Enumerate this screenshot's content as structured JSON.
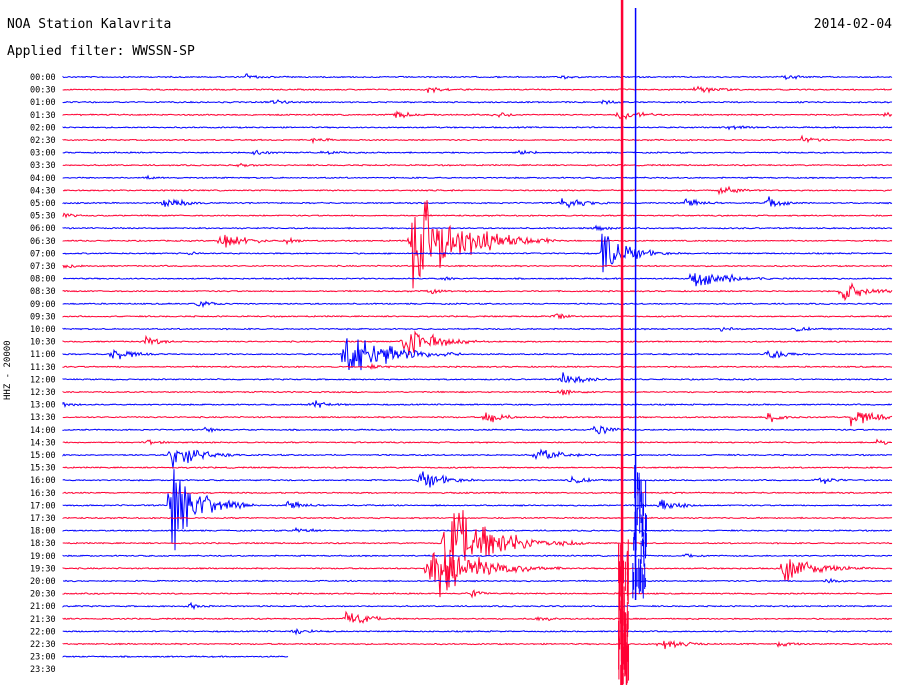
{
  "header": {
    "title": "NOA Station Kalavrita",
    "filter": "Applied filter: WWSSN-SP",
    "date": "2014-02-04"
  },
  "chart_data": {
    "type": "line",
    "title": "NOA Station Kalavrita",
    "subtitle": "Applied filter: WWSSN-SP",
    "date": "2014-02-04",
    "ylabel": "HHZ - 20000",
    "colors": {
      "odd": "#0000ff",
      "even": "#ff0033"
    },
    "rows": [
      "00:00",
      "00:30",
      "01:00",
      "01:30",
      "02:00",
      "02:30",
      "03:00",
      "03:30",
      "04:00",
      "04:30",
      "05:00",
      "05:30",
      "06:00",
      "06:30",
      "07:00",
      "07:30",
      "08:00",
      "08:30",
      "09:00",
      "09:30",
      "10:00",
      "10:30",
      "11:00",
      "11:30",
      "12:00",
      "12:30",
      "13:00",
      "13:30",
      "14:00",
      "14:30",
      "15:00",
      "15:30",
      "16:00",
      "16:30",
      "17:00",
      "17:30",
      "18:00",
      "18:30",
      "19:00",
      "19:30",
      "20:00",
      "20:30",
      "21:00",
      "21:30",
      "22:00",
      "22:30",
      "23:00",
      "23:30"
    ],
    "events": [
      {
        "row": 0,
        "t": 0.22,
        "amp": 4,
        "dur": 0.03
      },
      {
        "row": 0,
        "t": 0.6,
        "amp": 3,
        "dur": 0.03
      },
      {
        "row": 0,
        "t": 0.87,
        "amp": 4,
        "dur": 0.03
      },
      {
        "row": 1,
        "t": 0.44,
        "amp": 4,
        "dur": 0.03
      },
      {
        "row": 1,
        "t": 0.76,
        "amp": 6,
        "dur": 0.04
      },
      {
        "row": 2,
        "t": 0.25,
        "amp": 4,
        "dur": 0.03
      },
      {
        "row": 2,
        "t": 0.65,
        "amp": 3,
        "dur": 0.03
      },
      {
        "row": 3,
        "t": 0.4,
        "amp": 5,
        "dur": 0.03
      },
      {
        "row": 3,
        "t": 0.52,
        "amp": 4,
        "dur": 0.03
      },
      {
        "row": 3,
        "t": 0.67,
        "amp": 7,
        "dur": 0.04
      },
      {
        "row": 3,
        "t": 0.99,
        "amp": 4,
        "dur": 0.02
      },
      {
        "row": 4,
        "t": 0.8,
        "amp": 4,
        "dur": 0.03
      },
      {
        "row": 5,
        "t": 0.3,
        "amp": 4,
        "dur": 0.03
      },
      {
        "row": 5,
        "t": 0.89,
        "amp": 5,
        "dur": 0.03
      },
      {
        "row": 6,
        "t": 0.23,
        "amp": 4,
        "dur": 0.03
      },
      {
        "row": 6,
        "t": 0.31,
        "amp": 4,
        "dur": 0.03
      },
      {
        "row": 6,
        "t": 0.55,
        "amp": 4,
        "dur": 0.03
      },
      {
        "row": 7,
        "t": 0.21,
        "amp": 3,
        "dur": 0.03
      },
      {
        "row": 8,
        "t": 0.1,
        "amp": 3,
        "dur": 0.03
      },
      {
        "row": 9,
        "t": 0.79,
        "amp": 6,
        "dur": 0.04
      },
      {
        "row": 10,
        "t": 0.12,
        "amp": 7,
        "dur": 0.04
      },
      {
        "row": 10,
        "t": 0.6,
        "amp": 8,
        "dur": 0.04
      },
      {
        "row": 10,
        "t": 0.75,
        "amp": 6,
        "dur": 0.03
      },
      {
        "row": 10,
        "t": 0.85,
        "amp": 8,
        "dur": 0.03
      },
      {
        "row": 11,
        "t": 0.0,
        "amp": 4,
        "dur": 0.02
      },
      {
        "row": 12,
        "t": 0.64,
        "amp": 4,
        "dur": 0.03
      },
      {
        "row": 13,
        "t": 0.19,
        "amp": 12,
        "dur": 0.04
      },
      {
        "row": 13,
        "t": 0.42,
        "amp": 70,
        "dur": 0.07
      },
      {
        "row": 13,
        "t": 0.27,
        "amp": 4,
        "dur": 0.02
      },
      {
        "row": 14,
        "t": 0.65,
        "amp": 28,
        "dur": 0.04
      },
      {
        "row": 14,
        "t": 0.15,
        "amp": 3,
        "dur": 0.02
      },
      {
        "row": 15,
        "t": 0.0,
        "amp": 5,
        "dur": 0.02
      },
      {
        "row": 16,
        "t": 0.76,
        "amp": 15,
        "dur": 0.05
      },
      {
        "row": 16,
        "t": 0.46,
        "amp": 3,
        "dur": 0.02
      },
      {
        "row": 17,
        "t": 0.44,
        "amp": 4,
        "dur": 0.03
      },
      {
        "row": 17,
        "t": 0.94,
        "amp": 14,
        "dur": 0.04
      },
      {
        "row": 18,
        "t": 0.16,
        "amp": 5,
        "dur": 0.03
      },
      {
        "row": 19,
        "t": 0.59,
        "amp": 5,
        "dur": 0.03
      },
      {
        "row": 20,
        "t": 0.79,
        "amp": 4,
        "dur": 0.03
      },
      {
        "row": 20,
        "t": 0.88,
        "amp": 4,
        "dur": 0.03
      },
      {
        "row": 21,
        "t": 0.1,
        "amp": 6,
        "dur": 0.03
      },
      {
        "row": 21,
        "t": 0.41,
        "amp": 20,
        "dur": 0.05
      },
      {
        "row": 22,
        "t": 0.06,
        "amp": 10,
        "dur": 0.03
      },
      {
        "row": 22,
        "t": 0.34,
        "amp": 40,
        "dur": 0.06
      },
      {
        "row": 22,
        "t": 0.85,
        "amp": 9,
        "dur": 0.03
      },
      {
        "row": 23,
        "t": 0.37,
        "amp": 4,
        "dur": 0.03
      },
      {
        "row": 24,
        "t": 0.6,
        "amp": 9,
        "dur": 0.04
      },
      {
        "row": 25,
        "t": 0.6,
        "amp": 5,
        "dur": 0.03
      },
      {
        "row": 26,
        "t": 0.0,
        "amp": 5,
        "dur": 0.02
      },
      {
        "row": 26,
        "t": 0.3,
        "amp": 6,
        "dur": 0.03
      },
      {
        "row": 27,
        "t": 0.51,
        "amp": 9,
        "dur": 0.03
      },
      {
        "row": 27,
        "t": 0.85,
        "amp": 7,
        "dur": 0.03
      },
      {
        "row": 27,
        "t": 0.95,
        "amp": 12,
        "dur": 0.04
      },
      {
        "row": 28,
        "t": 0.64,
        "amp": 8,
        "dur": 0.03
      },
      {
        "row": 28,
        "t": 0.17,
        "amp": 4,
        "dur": 0.02
      },
      {
        "row": 29,
        "t": 0.1,
        "amp": 4,
        "dur": 0.03
      },
      {
        "row": 29,
        "t": 0.98,
        "amp": 5,
        "dur": 0.02
      },
      {
        "row": 30,
        "t": 0.13,
        "amp": 20,
        "dur": 0.04
      },
      {
        "row": 30,
        "t": 0.57,
        "amp": 10,
        "dur": 0.04
      },
      {
        "row": 32,
        "t": 0.43,
        "amp": 13,
        "dur": 0.04
      },
      {
        "row": 32,
        "t": 0.61,
        "amp": 6,
        "dur": 0.03
      },
      {
        "row": 32,
        "t": 0.91,
        "amp": 6,
        "dur": 0.03
      },
      {
        "row": 34,
        "t": 0.13,
        "amp": 60,
        "dur": 0.04
      },
      {
        "row": 34,
        "t": 0.27,
        "amp": 6,
        "dur": 0.03
      },
      {
        "row": 34,
        "t": 0.72,
        "amp": 10,
        "dur": 0.03
      },
      {
        "row": 36,
        "t": 0.28,
        "amp": 6,
        "dur": 0.03
      },
      {
        "row": 37,
        "t": 0.46,
        "amp": 60,
        "dur": 0.07
      },
      {
        "row": 38,
        "t": 0.75,
        "amp": 4,
        "dur": 0.03
      },
      {
        "row": 39,
        "t": 0.87,
        "amp": 20,
        "dur": 0.05
      },
      {
        "row": 39,
        "t": 0.44,
        "amp": 40,
        "dur": 0.07
      },
      {
        "row": 40,
        "t": 0.92,
        "amp": 4,
        "dur": 0.03
      },
      {
        "row": 41,
        "t": 0.49,
        "amp": 5,
        "dur": 0.03
      },
      {
        "row": 42,
        "t": 0.15,
        "amp": 4,
        "dur": 0.03
      },
      {
        "row": 43,
        "t": 0.34,
        "amp": 10,
        "dur": 0.04
      },
      {
        "row": 43,
        "t": 0.57,
        "amp": 4,
        "dur": 0.03
      },
      {
        "row": 44,
        "t": 0.28,
        "amp": 5,
        "dur": 0.03
      },
      {
        "row": 45,
        "t": 0.72,
        "amp": 8,
        "dur": 0.04
      },
      {
        "row": 45,
        "t": 0.86,
        "amp": 5,
        "dur": 0.03
      }
    ],
    "big_event": {
      "start_row": 0,
      "t": 0.675,
      "note": "large teleseism trace crossing all rows"
    }
  }
}
